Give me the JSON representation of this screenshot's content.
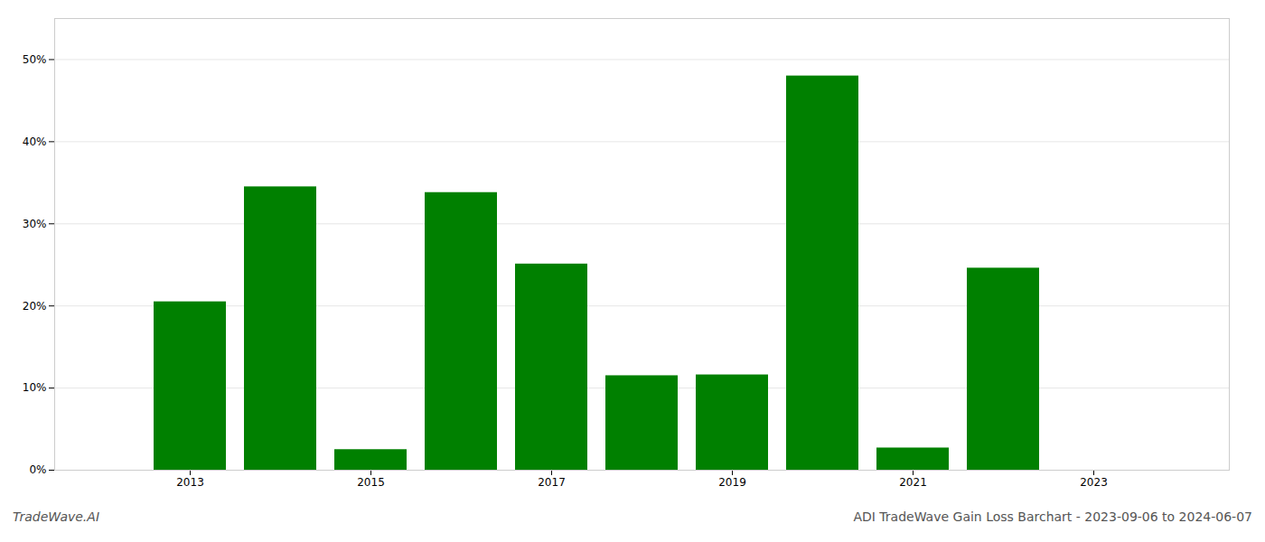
{
  "chart_data": {
    "type": "bar",
    "x": [
      2013,
      2014,
      2015,
      2016,
      2017,
      2018,
      2019,
      2020,
      2021,
      2022,
      2023
    ],
    "values": [
      0.205,
      0.345,
      0.025,
      0.338,
      0.251,
      0.115,
      0.116,
      0.48,
      0.027,
      0.246,
      0.0
    ],
    "color": "#008000",
    "xlim": [
      2011.5,
      2024.5
    ],
    "xticks": [
      2013,
      2015,
      2017,
      2019,
      2021,
      2023
    ],
    "ylim": [
      0,
      0.55
    ],
    "yticks": [
      {
        "value": 0.0,
        "label": "0%"
      },
      {
        "value": 0.1,
        "label": "10%"
      },
      {
        "value": 0.2,
        "label": "20%"
      },
      {
        "value": 0.3,
        "label": "30%"
      },
      {
        "value": 0.4,
        "label": "40%"
      },
      {
        "value": 0.5,
        "label": "50%"
      }
    ],
    "grid": true,
    "annotations": [
      "TradeWave.AI",
      "ADI TradeWave Gain Loss Barchart - 2023-09-06 to 2024-06-07"
    ]
  }
}
